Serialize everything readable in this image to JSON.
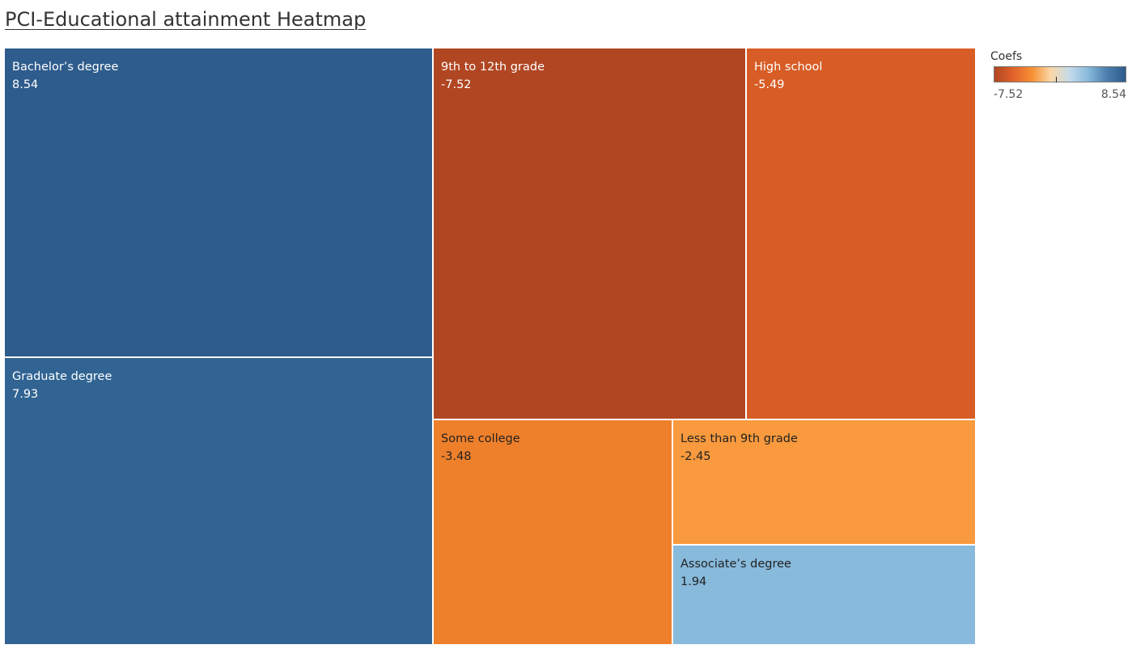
{
  "page": {
    "title": "PCI-Educational attainment Heatmap"
  },
  "chart_data": {
    "type": "heatmap",
    "subtype": "treemap",
    "title": "PCI-Educational attainment Heatmap",
    "size_field": "abs(Coefs)",
    "color_field": "Coefs",
    "items": [
      {
        "name": "Bachelor’s degree",
        "label": "8.54",
        "value": 8.54,
        "color": "#2e5c8c",
        "text_color": "#ffffff"
      },
      {
        "name": "Graduate degree",
        "label": "7.93",
        "value": 7.93,
        "color": "#316493",
        "text_color": "#ffffff"
      },
      {
        "name": "9th to 12th grade",
        "label": "-7.52",
        "value": -7.52,
        "color": "#b04622",
        "text_color": "#ffffff"
      },
      {
        "name": "High school",
        "label": "-5.49",
        "value": -5.49,
        "color": "#d75c25",
        "text_color": "#ffffff"
      },
      {
        "name": "Some college",
        "label": "-3.48",
        "value": -3.48,
        "color": "#ef802b",
        "text_color": "#222222"
      },
      {
        "name": "Less than 9th grade",
        "label": "-2.45",
        "value": -2.45,
        "color": "#f89a3d",
        "text_color": "#222222"
      },
      {
        "name": "Associate’s degree",
        "label": "1.94",
        "value": 1.94,
        "color": "#88badc",
        "text_color": "#222222"
      }
    ],
    "legend": {
      "title": "Coefs",
      "min_label": "-7.52",
      "max_label": "8.54",
      "min": -7.52,
      "max": 8.54,
      "mid_value": 0,
      "gradient": [
        "#b04622",
        "#e1612a",
        "#f78f33",
        "#fbd7a5",
        "#c5dbeb",
        "#88badc",
        "#4c7fae",
        "#2e5c8c"
      ]
    }
  }
}
